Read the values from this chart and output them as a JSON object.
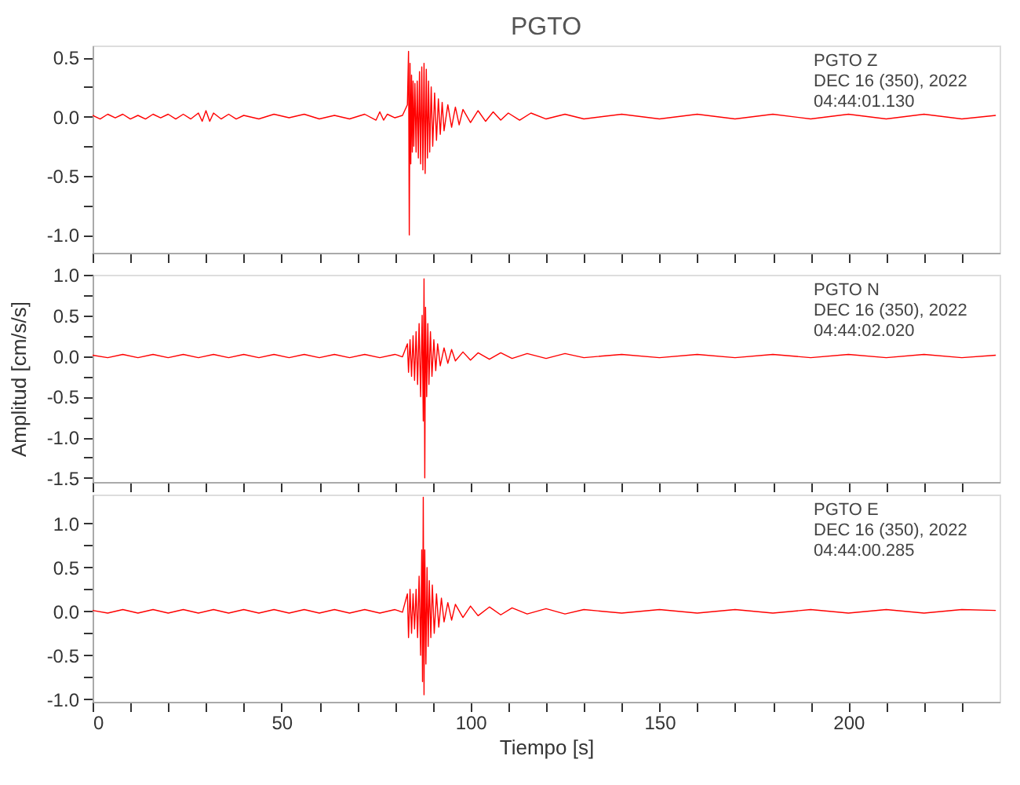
{
  "chart_data": [
    {
      "type": "line",
      "title": "PGTO",
      "annotations": [
        "PGTO   Z",
        "DEC 16 (350), 2022",
        "04:44:01.130"
      ],
      "tick_labels": "y",
      "xlim": [
        0,
        240
      ],
      "ylim": [
        -1.15,
        0.6
      ],
      "xticks": [
        {
          "value": 0,
          "label": null
        },
        {
          "value": 10,
          "label": null
        },
        {
          "value": 20,
          "label": null
        },
        {
          "value": 30,
          "label": null
        },
        {
          "value": 40,
          "label": null
        },
        {
          "value": 50,
          "label": null
        },
        {
          "value": 60,
          "label": null
        },
        {
          "value": 70,
          "label": null
        },
        {
          "value": 80,
          "label": null
        },
        {
          "value": 90,
          "label": null
        },
        {
          "value": 100,
          "label": null
        },
        {
          "value": 110,
          "label": null
        },
        {
          "value": 120,
          "label": null
        },
        {
          "value": 130,
          "label": null
        },
        {
          "value": 140,
          "label": null
        },
        {
          "value": 150,
          "label": null
        },
        {
          "value": 160,
          "label": null
        },
        {
          "value": 170,
          "label": null
        },
        {
          "value": 180,
          "label": null
        },
        {
          "value": 190,
          "label": null
        },
        {
          "value": 200,
          "label": null
        },
        {
          "value": 210,
          "label": null
        },
        {
          "value": 220,
          "label": null
        },
        {
          "value": 230,
          "label": null
        }
      ],
      "yticks": [
        {
          "value": 0.5,
          "label": "0.5"
        },
        {
          "value": 0.25,
          "label": null
        },
        {
          "value": 0,
          "label": "0.0"
        },
        {
          "value": -0.25,
          "label": null
        },
        {
          "value": -0.5,
          "label": "-0.5"
        },
        {
          "value": -0.75,
          "label": null
        },
        {
          "value": -1,
          "label": "-1.0"
        }
      ],
      "series": [
        {
          "color": "#ff0000",
          "x": [
            0,
            2,
            4,
            6,
            8,
            10,
            12,
            14,
            16,
            18,
            20,
            22,
            24,
            26,
            28,
            29,
            30,
            31,
            32,
            34,
            36,
            38,
            40,
            44,
            48,
            52,
            56,
            60,
            64,
            68,
            72,
            75,
            76,
            77,
            78,
            80,
            82,
            83.3,
            83.6,
            83.8,
            84.0,
            84.2,
            84.4,
            84.6,
            84.8,
            85.0,
            85.3,
            85.6,
            85.9,
            86.2,
            86.5,
            86.8,
            87.1,
            87.4,
            87.7,
            88.0,
            88.3,
            88.6,
            88.9,
            89.2,
            89.6,
            90.0,
            90.5,
            91.0,
            91.5,
            92,
            92.5,
            93,
            94,
            95,
            96,
            97,
            98,
            100,
            102,
            104,
            106,
            108,
            110,
            113,
            116,
            120,
            125,
            130,
            140,
            150,
            160,
            170,
            180,
            190,
            200,
            210,
            220,
            230,
            239
          ],
          "values": [
            0.01,
            -0.02,
            0.02,
            -0.01,
            0.02,
            -0.02,
            0.01,
            -0.02,
            0.02,
            -0.01,
            0.02,
            -0.02,
            0.02,
            -0.02,
            0.03,
            -0.04,
            0.05,
            -0.04,
            0.03,
            -0.02,
            0.02,
            -0.02,
            0.01,
            -0.02,
            0.02,
            -0.01,
            0.02,
            -0.02,
            0.01,
            -0.02,
            0.02,
            -0.03,
            0.04,
            -0.03,
            0.02,
            -0.01,
            0.01,
            0.1,
            0.55,
            -1.0,
            0.45,
            -0.4,
            0.35,
            -0.3,
            0.3,
            -0.25,
            0.28,
            -0.3,
            0.3,
            -0.35,
            0.38,
            -0.4,
            0.42,
            -0.45,
            0.45,
            -0.48,
            0.4,
            -0.35,
            0.3,
            -0.3,
            0.25,
            -0.25,
            0.2,
            -0.2,
            0.15,
            -0.15,
            0.12,
            -0.12,
            0.1,
            -0.09,
            0.08,
            -0.07,
            0.06,
            -0.05,
            0.05,
            -0.04,
            0.04,
            -0.03,
            0.03,
            -0.03,
            0.03,
            -0.02,
            0.02,
            -0.02,
            0.02,
            -0.02,
            0.02,
            -0.02,
            0.02,
            -0.02,
            0.02,
            -0.02,
            0.02,
            -0.02,
            0.01
          ]
        }
      ]
    },
    {
      "type": "line",
      "ylabel": "Amplitud [cm/s/s]",
      "annotations": [
        "PGTO   N",
        "DEC 16 (350), 2022",
        "04:44:02.020"
      ],
      "tick_labels": "y",
      "xlim": [
        0,
        240
      ],
      "ylim": [
        -1.55,
        1.0
      ],
      "xticks": [
        {
          "value": 0,
          "label": null
        },
        {
          "value": 10,
          "label": null
        },
        {
          "value": 20,
          "label": null
        },
        {
          "value": 30,
          "label": null
        },
        {
          "value": 40,
          "label": null
        },
        {
          "value": 50,
          "label": null
        },
        {
          "value": 60,
          "label": null
        },
        {
          "value": 70,
          "label": null
        },
        {
          "value": 80,
          "label": null
        },
        {
          "value": 90,
          "label": null
        },
        {
          "value": 100,
          "label": null
        },
        {
          "value": 110,
          "label": null
        },
        {
          "value": 120,
          "label": null
        },
        {
          "value": 130,
          "label": null
        },
        {
          "value": 140,
          "label": null
        },
        {
          "value": 150,
          "label": null
        },
        {
          "value": 160,
          "label": null
        },
        {
          "value": 170,
          "label": null
        },
        {
          "value": 180,
          "label": null
        },
        {
          "value": 190,
          "label": null
        },
        {
          "value": 200,
          "label": null
        },
        {
          "value": 210,
          "label": null
        },
        {
          "value": 220,
          "label": null
        },
        {
          "value": 230,
          "label": null
        }
      ],
      "yticks": [
        {
          "value": 1,
          "label": "1.0"
        },
        {
          "value": 0.75,
          "label": null
        },
        {
          "value": 0.5,
          "label": "0.5"
        },
        {
          "value": 0.25,
          "label": null
        },
        {
          "value": 0,
          "label": "0.0"
        },
        {
          "value": -0.25,
          "label": null
        },
        {
          "value": -0.5,
          "label": "-0.5"
        },
        {
          "value": -0.75,
          "label": null
        },
        {
          "value": -1,
          "label": "-1.0"
        },
        {
          "value": -1.25,
          "label": null
        },
        {
          "value": -1.5,
          "label": "-1.5"
        }
      ],
      "series": [
        {
          "color": "#ff0000",
          "x": [
            0,
            4,
            8,
            12,
            16,
            20,
            24,
            28,
            32,
            36,
            40,
            44,
            48,
            52,
            56,
            60,
            64,
            68,
            72,
            76,
            80,
            82,
            83.3,
            83.6,
            84.0,
            84.4,
            84.8,
            85.2,
            85.6,
            86.0,
            86.4,
            86.8,
            87.2,
            87.5,
            87.7,
            87.9,
            88.1,
            88.4,
            88.7,
            89.0,
            89.4,
            89.8,
            90.3,
            90.8,
            91.3,
            92,
            93,
            94,
            95,
            96,
            98,
            100,
            102,
            105,
            108,
            111,
            115,
            120,
            125,
            130,
            140,
            150,
            160,
            170,
            180,
            190,
            200,
            210,
            220,
            230,
            239
          ],
          "values": [
            0.01,
            -0.02,
            0.02,
            -0.02,
            0.02,
            -0.02,
            0.02,
            -0.02,
            0.02,
            -0.02,
            0.02,
            -0.02,
            0.02,
            -0.02,
            0.02,
            -0.02,
            0.02,
            -0.02,
            0.02,
            -0.02,
            0.02,
            -0.01,
            0.15,
            -0.2,
            0.2,
            -0.25,
            0.25,
            -0.3,
            0.3,
            -0.35,
            0.4,
            -0.5,
            0.5,
            -0.8,
            0.95,
            -1.5,
            0.6,
            -0.5,
            0.4,
            -0.35,
            0.3,
            -0.25,
            0.2,
            -0.18,
            0.15,
            -0.12,
            0.1,
            -0.09,
            0.08,
            -0.06,
            0.05,
            -0.05,
            0.04,
            -0.04,
            0.04,
            -0.03,
            0.03,
            -0.03,
            0.03,
            -0.02,
            0.02,
            -0.02,
            0.02,
            -0.02,
            0.02,
            -0.02,
            0.02,
            -0.02,
            0.02,
            -0.02,
            0.01
          ]
        }
      ]
    },
    {
      "type": "line",
      "xlabel": "Tiempo [s]",
      "annotations": [
        "PGTO   E",
        "DEC 16 (350), 2022",
        "04:44:00.285"
      ],
      "xlim": [
        0,
        240
      ],
      "ylim": [
        -1.03,
        1.33
      ],
      "xticks": [
        {
          "value": 0,
          "label": "0"
        },
        {
          "value": 10,
          "label": null
        },
        {
          "value": 20,
          "label": null
        },
        {
          "value": 30,
          "label": null
        },
        {
          "value": 40,
          "label": null
        },
        {
          "value": 50,
          "label": "50"
        },
        {
          "value": 60,
          "label": null
        },
        {
          "value": 70,
          "label": null
        },
        {
          "value": 80,
          "label": null
        },
        {
          "value": 90,
          "label": null
        },
        {
          "value": 100,
          "label": "100"
        },
        {
          "value": 110,
          "label": null
        },
        {
          "value": 120,
          "label": null
        },
        {
          "value": 130,
          "label": null
        },
        {
          "value": 140,
          "label": null
        },
        {
          "value": 150,
          "label": "150"
        },
        {
          "value": 160,
          "label": null
        },
        {
          "value": 170,
          "label": null
        },
        {
          "value": 180,
          "label": null
        },
        {
          "value": 190,
          "label": null
        },
        {
          "value": 200,
          "label": "200"
        },
        {
          "value": 210,
          "label": null
        },
        {
          "value": 220,
          "label": null
        },
        {
          "value": 230,
          "label": null
        }
      ],
      "yticks": [
        {
          "value": 1,
          "label": "1.0"
        },
        {
          "value": 0.75,
          "label": null
        },
        {
          "value": 0.5,
          "label": "0.5"
        },
        {
          "value": 0.25,
          "label": null
        },
        {
          "value": 0,
          "label": "0.0"
        },
        {
          "value": -0.25,
          "label": null
        },
        {
          "value": -0.5,
          "label": "-0.5"
        },
        {
          "value": -0.75,
          "label": null
        },
        {
          "value": -1,
          "label": "-1.0"
        }
      ],
      "series": [
        {
          "color": "#ff0000",
          "x": [
            0,
            4,
            8,
            12,
            16,
            20,
            24,
            28,
            32,
            36,
            40,
            44,
            48,
            52,
            56,
            60,
            64,
            68,
            72,
            76,
            80,
            82,
            83.3,
            83.6,
            84.0,
            84.4,
            84.8,
            85.2,
            85.6,
            86.0,
            86.4,
            86.8,
            87.1,
            87.3,
            87.5,
            87.7,
            87.9,
            88.2,
            88.5,
            88.8,
            89.1,
            89.5,
            89.9,
            90.4,
            91,
            91.6,
            92.3,
            93,
            94,
            95,
            96,
            98,
            100,
            102,
            105,
            108,
            111,
            115,
            120,
            125,
            130,
            140,
            150,
            160,
            170,
            180,
            190,
            200,
            210,
            220,
            230,
            239
          ],
          "values": [
            0.01,
            -0.02,
            0.02,
            -0.02,
            0.02,
            -0.02,
            0.02,
            -0.02,
            0.02,
            -0.02,
            0.02,
            -0.02,
            0.02,
            -0.02,
            0.02,
            -0.02,
            0.02,
            -0.02,
            0.02,
            -0.02,
            0.02,
            -0.01,
            0.2,
            -0.3,
            0.25,
            -0.25,
            0.2,
            -0.2,
            0.25,
            -0.3,
            0.4,
            -0.5,
            0.7,
            -0.8,
            1.3,
            -0.95,
            0.7,
            -0.6,
            0.5,
            -0.4,
            0.35,
            -0.3,
            0.3,
            -0.25,
            0.2,
            -0.18,
            0.15,
            -0.12,
            0.1,
            -0.1,
            0.08,
            -0.07,
            0.06,
            -0.05,
            0.05,
            -0.04,
            0.04,
            -0.03,
            0.03,
            -0.03,
            0.02,
            -0.02,
            0.02,
            -0.02,
            0.02,
            -0.02,
            0.02,
            -0.02,
            0.02,
            -0.02,
            0.02,
            0.01
          ]
        }
      ]
    }
  ]
}
